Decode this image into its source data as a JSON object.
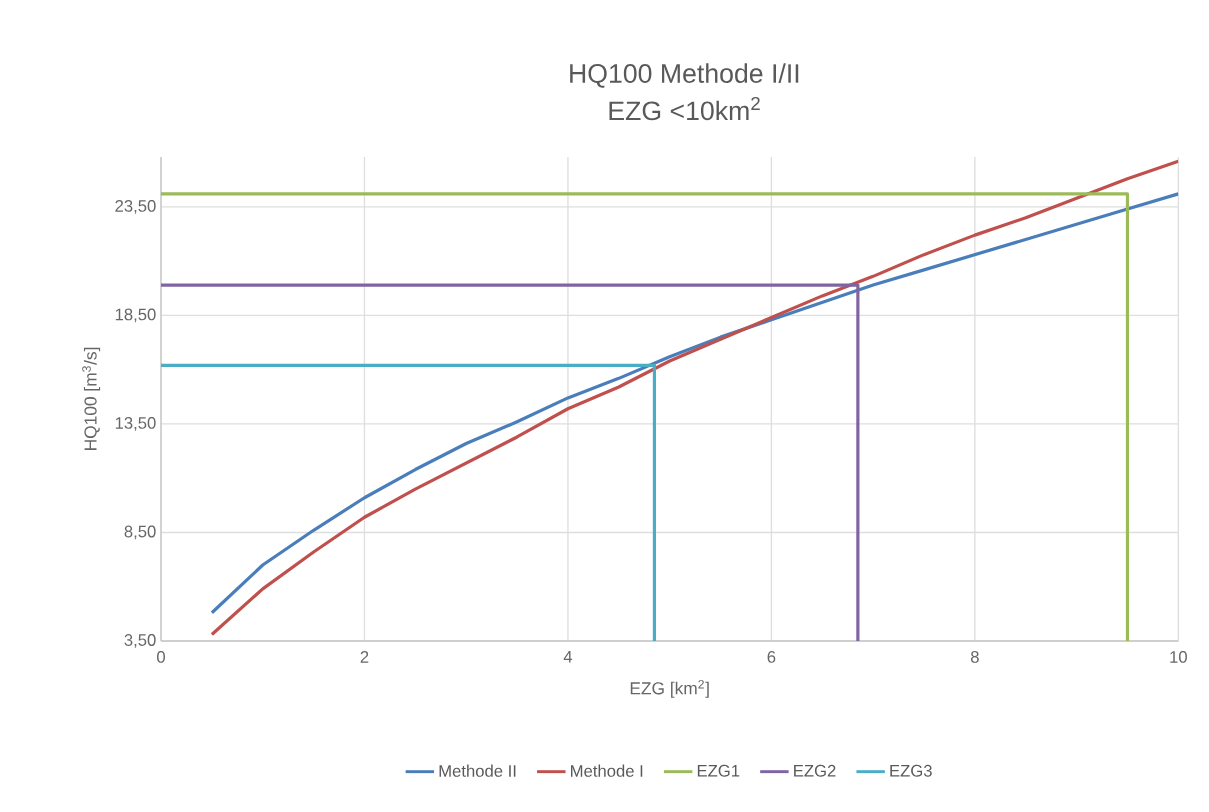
{
  "chart_data": {
    "type": "line",
    "title": "HQ100 Methode I/II",
    "subtitle": "EZG <10km$^{2}$",
    "xlabel": "EZG [km$^{2}$]",
    "ylabel": "HQ100 [m$^{3}$/s]",
    "xlim": [
      0,
      10
    ],
    "ylim": [
      3.5,
      25.8
    ],
    "xticks": [
      0,
      2,
      4,
      6,
      8,
      10
    ],
    "yticks": [
      {
        "value": 3.5,
        "label": "3,50"
      },
      {
        "value": 8.5,
        "label": "8,50"
      },
      {
        "value": 13.5,
        "label": "13,50"
      },
      {
        "value": 18.5,
        "label": "18,50"
      },
      {
        "value": 23.5,
        "label": "23,50"
      }
    ],
    "grid": true,
    "legend": "bottom",
    "marker": "none",
    "line_style": "solid",
    "series": [
      {
        "name": "Methode II",
        "color": "#4a7ebb",
        "x": [
          0.5,
          1,
          1.5,
          2,
          2.5,
          3,
          3.5,
          4,
          4.5,
          5,
          5.5,
          6,
          6.5,
          7,
          7.5,
          8,
          8.5,
          9,
          9.5,
          10
        ],
        "values": [
          4.8,
          7.0,
          8.6,
          10.1,
          11.4,
          12.6,
          13.6,
          14.7,
          15.6,
          16.6,
          17.5,
          18.3,
          19.1,
          19.9,
          20.6,
          21.3,
          22.0,
          22.7,
          23.4,
          24.1
        ]
      },
      {
        "name": "Methode I",
        "color": "#c0504d",
        "x": [
          0.5,
          1,
          1.5,
          2,
          2.5,
          3,
          3.5,
          4,
          4.5,
          5,
          5.5,
          6,
          6.5,
          7,
          7.5,
          8,
          8.5,
          9,
          9.5,
          10
        ],
        "values": [
          3.8,
          5.9,
          7.6,
          9.2,
          10.5,
          11.7,
          12.9,
          14.2,
          15.2,
          16.4,
          17.4,
          18.4,
          19.4,
          20.3,
          21.3,
          22.2,
          23.0,
          23.9,
          24.8,
          25.6
        ]
      },
      {
        "name": "EZG1",
        "color": "#9bbb59",
        "x": [
          0,
          9.5,
          9.5
        ],
        "values": [
          24.1,
          24.1,
          3.5
        ]
      },
      {
        "name": "EZG2",
        "color": "#8064a2",
        "x": [
          0,
          6.85,
          6.85
        ],
        "values": [
          19.9,
          19.9,
          3.5
        ]
      },
      {
        "name": "EZG3",
        "color": "#4bacc6",
        "x": [
          0,
          4.85,
          4.85
        ],
        "values": [
          16.2,
          16.2,
          3.5
        ]
      }
    ]
  }
}
